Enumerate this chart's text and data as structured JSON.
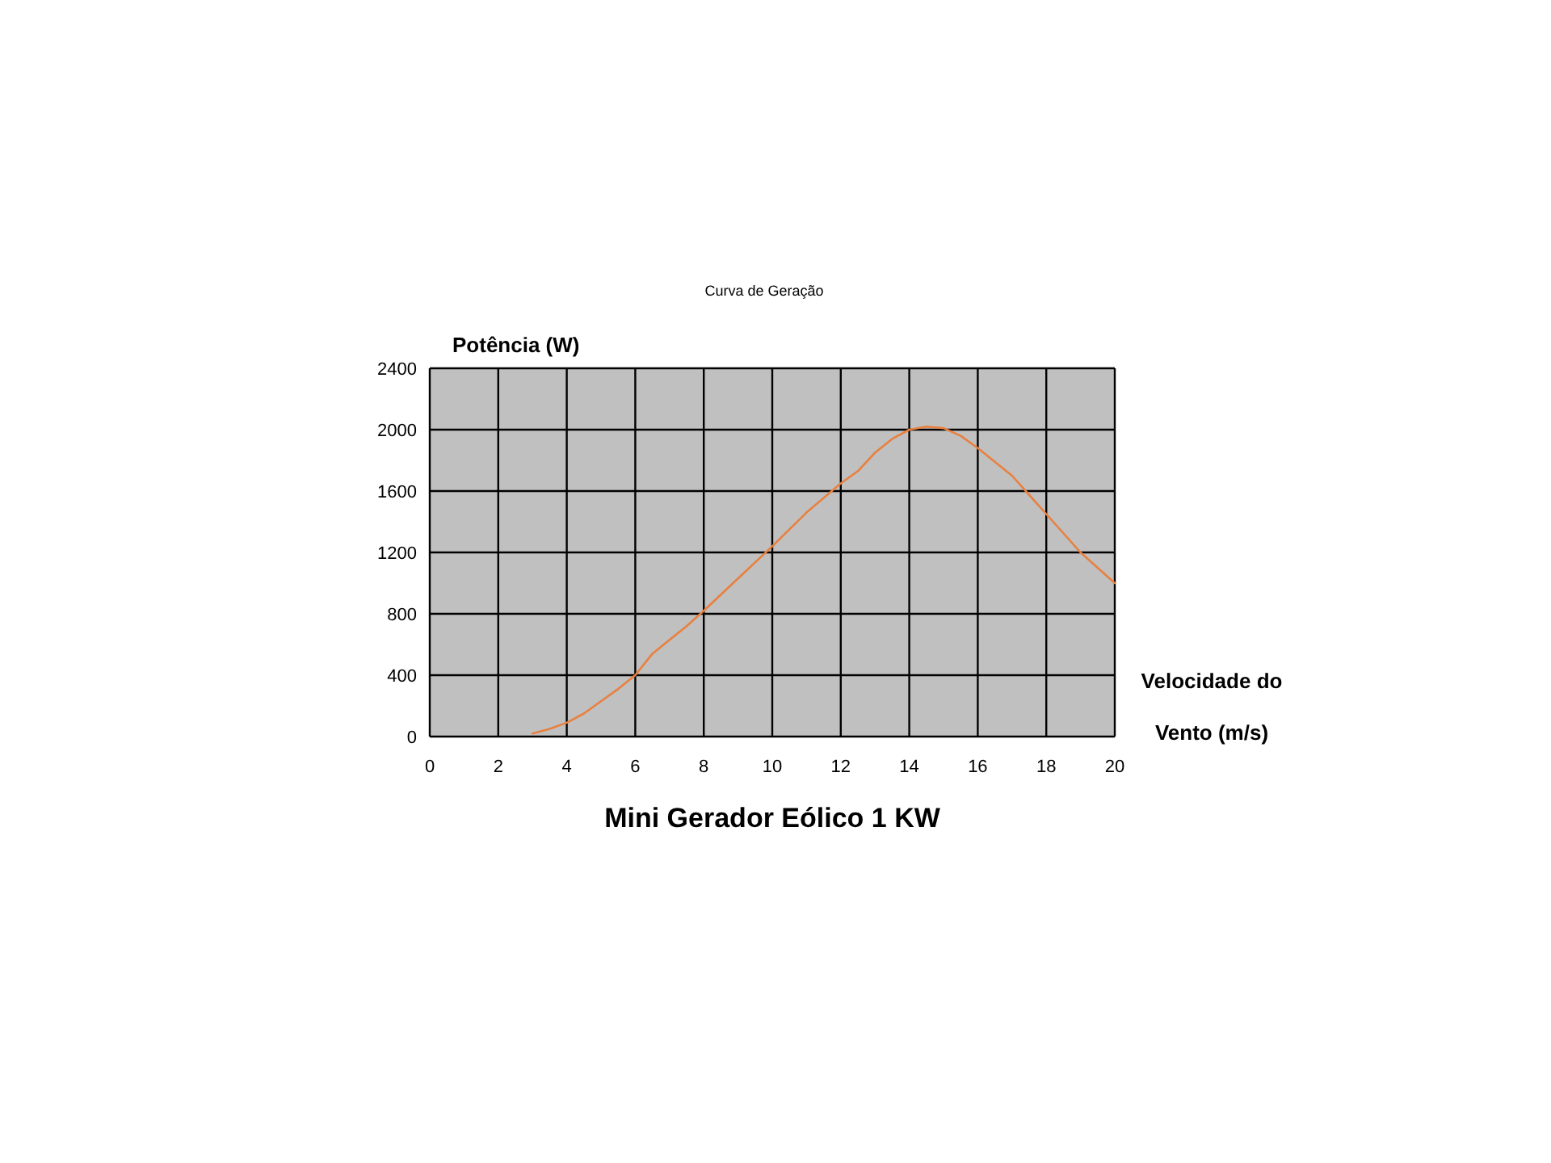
{
  "chart_data": {
    "type": "line",
    "title": "Curva de Geração",
    "ylabel": "Potência (W)",
    "xlabel": "Velocidade do Vento (m/s)",
    "annotations": [
      "Mini Gerador Eólico 1 KW"
    ],
    "x": [
      3,
      3.5,
      4,
      4.5,
      5,
      5.5,
      6,
      6.5,
      7,
      7.5,
      8,
      9,
      10,
      11,
      12,
      12.5,
      13,
      13.5,
      14,
      14.5,
      15,
      15.5,
      16,
      17,
      18,
      19,
      20
    ],
    "series": [
      {
        "color": "#e8803f",
        "values": [
          20,
          50,
          90,
          150,
          230,
          310,
          400,
          540,
          630,
          720,
          820,
          1030,
          1240,
          1460,
          1650,
          1730,
          1850,
          1940,
          2000,
          2020,
          2010,
          1960,
          1880,
          1700,
          1450,
          1200,
          1000
        ]
      }
    ],
    "xlim": [
      0,
      20
    ],
    "xticks": [
      0,
      2,
      4,
      6,
      8,
      10,
      12,
      14,
      16,
      18,
      20
    ],
    "ylim": [
      0,
      2400
    ],
    "yticks": [
      0,
      400,
      800,
      1200,
      1600,
      2000,
      2400
    ],
    "grid": true,
    "marker": "none",
    "line_style": "solid"
  }
}
